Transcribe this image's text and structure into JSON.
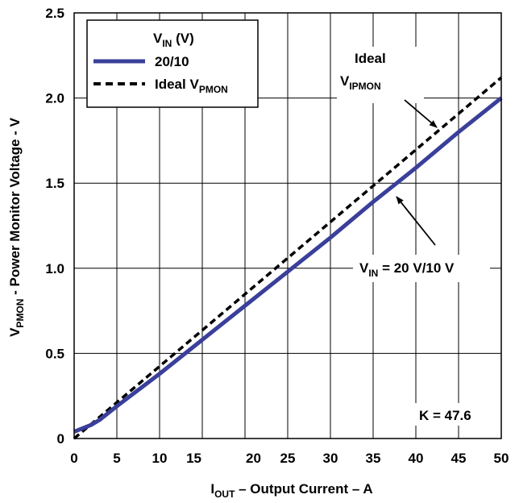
{
  "chart_data": {
    "type": "line",
    "xlabel": {
      "main": "I",
      "sub": "OUT",
      "rest": " – Output Current – A"
    },
    "ylabel": {
      "main": "V",
      "sub": "PMON",
      "rest": " - Power Monitor Voltage - V"
    },
    "xlim": [
      0,
      50
    ],
    "ylim": [
      0,
      2.5
    ],
    "x_ticks": [
      {
        "value": 0,
        "label": "0"
      },
      {
        "value": 5,
        "label": "5"
      },
      {
        "value": 10,
        "label": "10"
      },
      {
        "value": 15,
        "label": "15"
      },
      {
        "value": 20,
        "label": "20"
      },
      {
        "value": 25,
        "label": "25"
      },
      {
        "value": 30,
        "label": "30"
      },
      {
        "value": 35,
        "label": "35"
      },
      {
        "value": 40,
        "label": "40"
      },
      {
        "value": 45,
        "label": "45"
      },
      {
        "value": 50,
        "label": "50"
      }
    ],
    "y_ticks": [
      {
        "value": 0,
        "label": "0"
      },
      {
        "value": 0.5,
        "label": "0.5"
      },
      {
        "value": 1.0,
        "label": "1.0"
      },
      {
        "value": 1.5,
        "label": "1.5"
      },
      {
        "value": 2.0,
        "label": "2.0"
      },
      {
        "value": 2.5,
        "label": "2.5"
      }
    ],
    "grid": true,
    "legend": {
      "placement": "top-left",
      "title": {
        "main": "V",
        "sub": "IN",
        "rest": " (V)"
      },
      "entries": [
        {
          "main": "20/10",
          "sub": "",
          "series": 0
        },
        {
          "main": "Ideal V",
          "sub": "PMON",
          "series": 1
        }
      ]
    },
    "series": [
      {
        "name": "20/10",
        "color": "#3a3f9a",
        "style": "solid",
        "x": [
          0,
          1,
          2,
          3,
          5,
          10,
          15,
          20,
          25,
          30,
          35,
          40,
          45,
          50
        ],
        "y": [
          0.04,
          0.06,
          0.08,
          0.11,
          0.19,
          0.38,
          0.58,
          0.78,
          0.98,
          1.18,
          1.39,
          1.59,
          1.8,
          2.0
        ]
      },
      {
        "name": "Ideal V PMON",
        "color": "#000000",
        "style": "dashed",
        "x": [
          0,
          50
        ],
        "y": [
          0.0,
          2.12
        ]
      }
    ],
    "annotations": [
      {
        "id": "ideal-line1",
        "text": "Ideal",
        "sub": "",
        "rest": ""
      },
      {
        "id": "ideal-line2",
        "text": "V",
        "sub": "IPMON",
        "rest": ""
      },
      {
        "id": "vin",
        "text": "V",
        "sub": "IN",
        "rest": " = 20 V/10 V"
      },
      {
        "id": "k",
        "text": "K = 47.6",
        "sub": "",
        "rest": ""
      }
    ]
  }
}
